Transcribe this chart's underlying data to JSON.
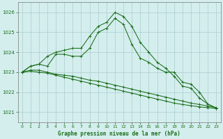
{
  "title": "Graphe pression niveau de la mer (hPa)",
  "background_color": "#d4eeee",
  "grid_color": "#aacccc",
  "line_color": "#1a6e1a",
  "tick_color": "#1a6e1a",
  "xlim": [
    -0.5,
    23.5
  ],
  "ylim": [
    1020.5,
    1026.5
  ],
  "yticks": [
    1021,
    1022,
    1023,
    1024,
    1025,
    1026
  ],
  "xticks": [
    0,
    1,
    2,
    3,
    4,
    5,
    6,
    7,
    8,
    9,
    10,
    11,
    12,
    13,
    14,
    15,
    16,
    17,
    18,
    19,
    20,
    21,
    22,
    23
  ],
  "series": [
    {
      "x": [
        0,
        1,
        2,
        3,
        4,
        5,
        6,
        7,
        8,
        9,
        10,
        11,
        12,
        13,
        14,
        15,
        16,
        17,
        18,
        19,
        20,
        21,
        22,
        23
      ],
      "y": [
        1023.0,
        1023.3,
        1023.4,
        1023.8,
        1024.0,
        1024.1,
        1024.2,
        1024.2,
        1024.8,
        1025.3,
        1025.5,
        1026.0,
        1025.8,
        1025.3,
        1024.5,
        1024.0,
        1023.5,
        1023.2,
        1022.8,
        1022.3,
        1022.2,
        1021.7,
        1021.4,
        1021.2
      ]
    },
    {
      "x": [
        0,
        1,
        2,
        3,
        4,
        5,
        6,
        7,
        8,
        9,
        10,
        11,
        12,
        13,
        14,
        15,
        16,
        17,
        18,
        19,
        20,
        21,
        22,
        23
      ],
      "y": [
        1023.0,
        1023.3,
        1023.4,
        1023.3,
        1023.9,
        1023.9,
        1023.8,
        1023.8,
        1024.2,
        1025.0,
        1025.2,
        1025.7,
        1025.4,
        1024.4,
        1023.7,
        1023.5,
        1023.2,
        1023.0,
        1023.0,
        1022.5,
        1022.4,
        1022.0,
        1021.4,
        1021.2
      ]
    },
    {
      "x": [
        0,
        1,
        2,
        3,
        4,
        5,
        6,
        7,
        8,
        9,
        10,
        11,
        12,
        13,
        14,
        15,
        16,
        17,
        18,
        19,
        20,
        21,
        22,
        23
      ],
      "y": [
        1023.0,
        1023.1,
        1023.1,
        1023.0,
        1022.9,
        1022.85,
        1022.8,
        1022.7,
        1022.6,
        1022.55,
        1022.45,
        1022.35,
        1022.25,
        1022.15,
        1022.05,
        1021.95,
        1021.85,
        1021.75,
        1021.65,
        1021.55,
        1021.45,
        1021.38,
        1021.3,
        1021.22
      ]
    },
    {
      "x": [
        0,
        1,
        2,
        3,
        4,
        5,
        6,
        7,
        8,
        9,
        10,
        11,
        12,
        13,
        14,
        15,
        16,
        17,
        18,
        19,
        20,
        21,
        22,
        23
      ],
      "y": [
        1023.0,
        1023.05,
        1023.0,
        1022.95,
        1022.85,
        1022.75,
        1022.65,
        1022.55,
        1022.45,
        1022.35,
        1022.25,
        1022.15,
        1022.05,
        1021.95,
        1021.85,
        1021.75,
        1021.65,
        1021.55,
        1021.45,
        1021.38,
        1021.32,
        1021.26,
        1021.22,
        1021.18
      ]
    }
  ]
}
